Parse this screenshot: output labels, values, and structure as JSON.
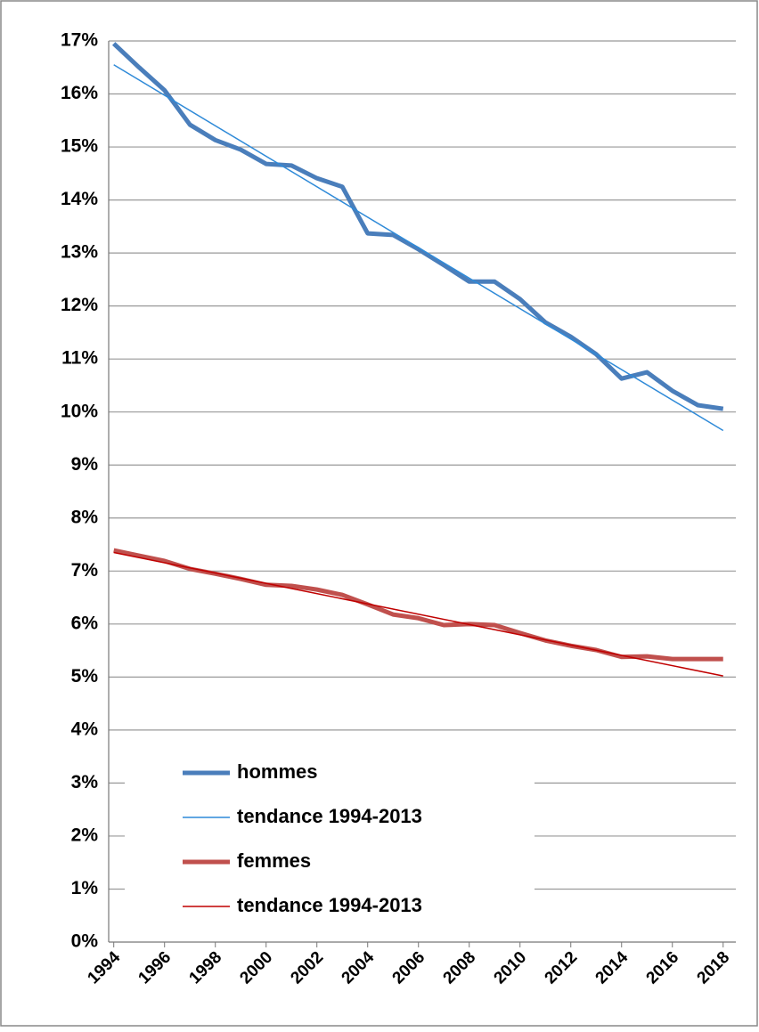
{
  "chart_data": {
    "type": "line",
    "x": [
      1994,
      1995,
      1996,
      1997,
      1998,
      1999,
      2000,
      2001,
      2002,
      2003,
      2004,
      2005,
      2006,
      2007,
      2008,
      2009,
      2010,
      2011,
      2012,
      2013,
      2014,
      2015,
      2016,
      2017,
      2018
    ],
    "xlim": [
      1993.8,
      2018.5
    ],
    "xticks": [
      1994,
      1996,
      1998,
      2000,
      2002,
      2004,
      2006,
      2008,
      2010,
      2012,
      2014,
      2016,
      2018
    ],
    "ylim": [
      0,
      17
    ],
    "yticks": [
      {
        "value": 0,
        "label": "0%"
      },
      {
        "value": 1,
        "label": "1%"
      },
      {
        "value": 2,
        "label": "2%"
      },
      {
        "value": 3,
        "label": "3%"
      },
      {
        "value": 4,
        "label": "4%"
      },
      {
        "value": 5,
        "label": "5%"
      },
      {
        "value": 6,
        "label": "6%"
      },
      {
        "value": 7,
        "label": "7%"
      },
      {
        "value": 8,
        "label": "8%"
      },
      {
        "value": 9,
        "label": "9%"
      },
      {
        "value": 10,
        "label": "10%"
      },
      {
        "value": 11,
        "label": "11%"
      },
      {
        "value": 12,
        "label": "12%"
      },
      {
        "value": 13,
        "label": "13%"
      },
      {
        "value": 14,
        "label": "14%"
      },
      {
        "value": 15,
        "label": "15%"
      },
      {
        "value": 16,
        "label": "16%"
      },
      {
        "value": 17,
        "label": "17%"
      }
    ],
    "grid": true,
    "series": [
      {
        "name": "hommes",
        "color": "#4a7ebb",
        "width": 5,
        "values": [
          16.95,
          16.5,
          16.07,
          15.42,
          15.13,
          14.95,
          14.68,
          14.65,
          14.41,
          14.25,
          13.37,
          13.34,
          13.07,
          12.77,
          12.46,
          12.46,
          12.13,
          11.69,
          11.42,
          11.09,
          10.63,
          10.75,
          10.4,
          10.13,
          10.06
        ]
      },
      {
        "name": "tendance 1994-2013",
        "color": "#2f8ad8",
        "width": 1.5,
        "x": [
          1994,
          2018
        ],
        "values": [
          16.55,
          9.65
        ]
      },
      {
        "name": "femmes",
        "color": "#c0504d",
        "width": 5,
        "values": [
          7.39,
          7.29,
          7.19,
          7.04,
          6.95,
          6.85,
          6.74,
          6.72,
          6.65,
          6.55,
          6.37,
          6.18,
          6.11,
          5.98,
          6.0,
          5.98,
          5.83,
          5.69,
          5.59,
          5.51,
          5.38,
          5.39,
          5.34,
          5.34,
          5.34
        ]
      },
      {
        "name": "tendance 1994-2013",
        "color": "#c00000",
        "width": 1.5,
        "x": [
          1994,
          2018
        ],
        "values": [
          7.35,
          5.02
        ]
      }
    ]
  }
}
